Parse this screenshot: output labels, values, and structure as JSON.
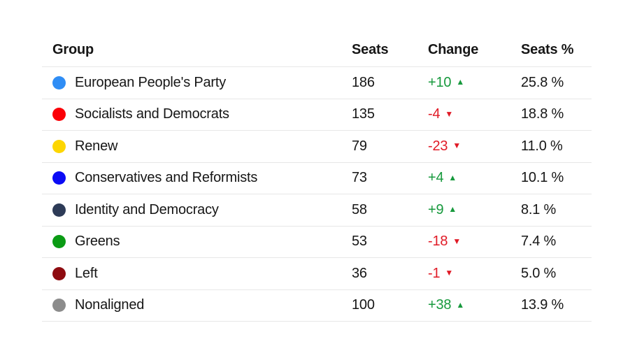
{
  "table": {
    "headers": {
      "group": "Group",
      "seats": "Seats",
      "change": "Change",
      "seats_pct": "Seats %"
    },
    "rows": [
      {
        "group": "European People's Party",
        "color": "#2f8df5",
        "seats": "186",
        "change": "+10",
        "direction": "up",
        "seats_pct": "25.8 %"
      },
      {
        "group": "Socialists and Democrats",
        "color": "#fb0007",
        "seats": "135",
        "change": "-4",
        "direction": "down",
        "seats_pct": "18.8 %"
      },
      {
        "group": "Renew",
        "color": "#fdd600",
        "seats": "79",
        "change": "-23",
        "direction": "down",
        "seats_pct": "11.0 %"
      },
      {
        "group": "Conservatives and Reformists",
        "color": "#0b0bf5",
        "seats": "73",
        "change": "+4",
        "direction": "up",
        "seats_pct": "10.1 %"
      },
      {
        "group": "Identity and Democracy",
        "color": "#2d3b57",
        "seats": "58",
        "change": "+9",
        "direction": "up",
        "seats_pct": "8.1 %"
      },
      {
        "group": "Greens",
        "color": "#0a9b14",
        "seats": "53",
        "change": "-18",
        "direction": "down",
        "seats_pct": "7.4 %"
      },
      {
        "group": "Left",
        "color": "#8e0b10",
        "seats": "36",
        "change": "-1",
        "direction": "down",
        "seats_pct": "5.0 %"
      },
      {
        "group": "Nonaligned",
        "color": "#8c8c8c",
        "seats": "100",
        "change": "+38",
        "direction": "up",
        "seats_pct": "13.9 %"
      }
    ],
    "positive_color": "#17993d",
    "negative_color": "#e01a26",
    "up_arrow": "▲",
    "down_arrow": "▼",
    "row_text_color": "#161616",
    "separator_color": "#e7e7e7"
  },
  "chart_data": {
    "type": "table",
    "title": "",
    "columns": [
      "Group",
      "Seats",
      "Change",
      "Seats %"
    ],
    "rows": [
      {
        "group": "European People's Party",
        "seats": 186,
        "change": 10,
        "seats_pct": 25.8
      },
      {
        "group": "Socialists and Democrats",
        "seats": 135,
        "change": -4,
        "seats_pct": 18.8
      },
      {
        "group": "Renew",
        "seats": 79,
        "change": -23,
        "seats_pct": 11.0
      },
      {
        "group": "Conservatives and Reformists",
        "seats": 73,
        "change": 4,
        "seats_pct": 10.1
      },
      {
        "group": "Identity and Democracy",
        "seats": 58,
        "change": 9,
        "seats_pct": 8.1
      },
      {
        "group": "Greens",
        "seats": 53,
        "change": -18,
        "seats_pct": 7.4
      },
      {
        "group": "Left",
        "seats": 36,
        "change": -1,
        "seats_pct": 5.0
      },
      {
        "group": "Nonaligned",
        "seats": 100,
        "change": 38,
        "seats_pct": 13.9
      }
    ],
    "legend_colors": {
      "European People's Party": "#2f8df5",
      "Socialists and Democrats": "#fb0007",
      "Renew": "#fdd600",
      "Conservatives and Reformists": "#0b0bf5",
      "Identity and Democracy": "#2d3b57",
      "Greens": "#0a9b14",
      "Left": "#8e0b10",
      "Nonaligned": "#8c8c8c"
    }
  }
}
